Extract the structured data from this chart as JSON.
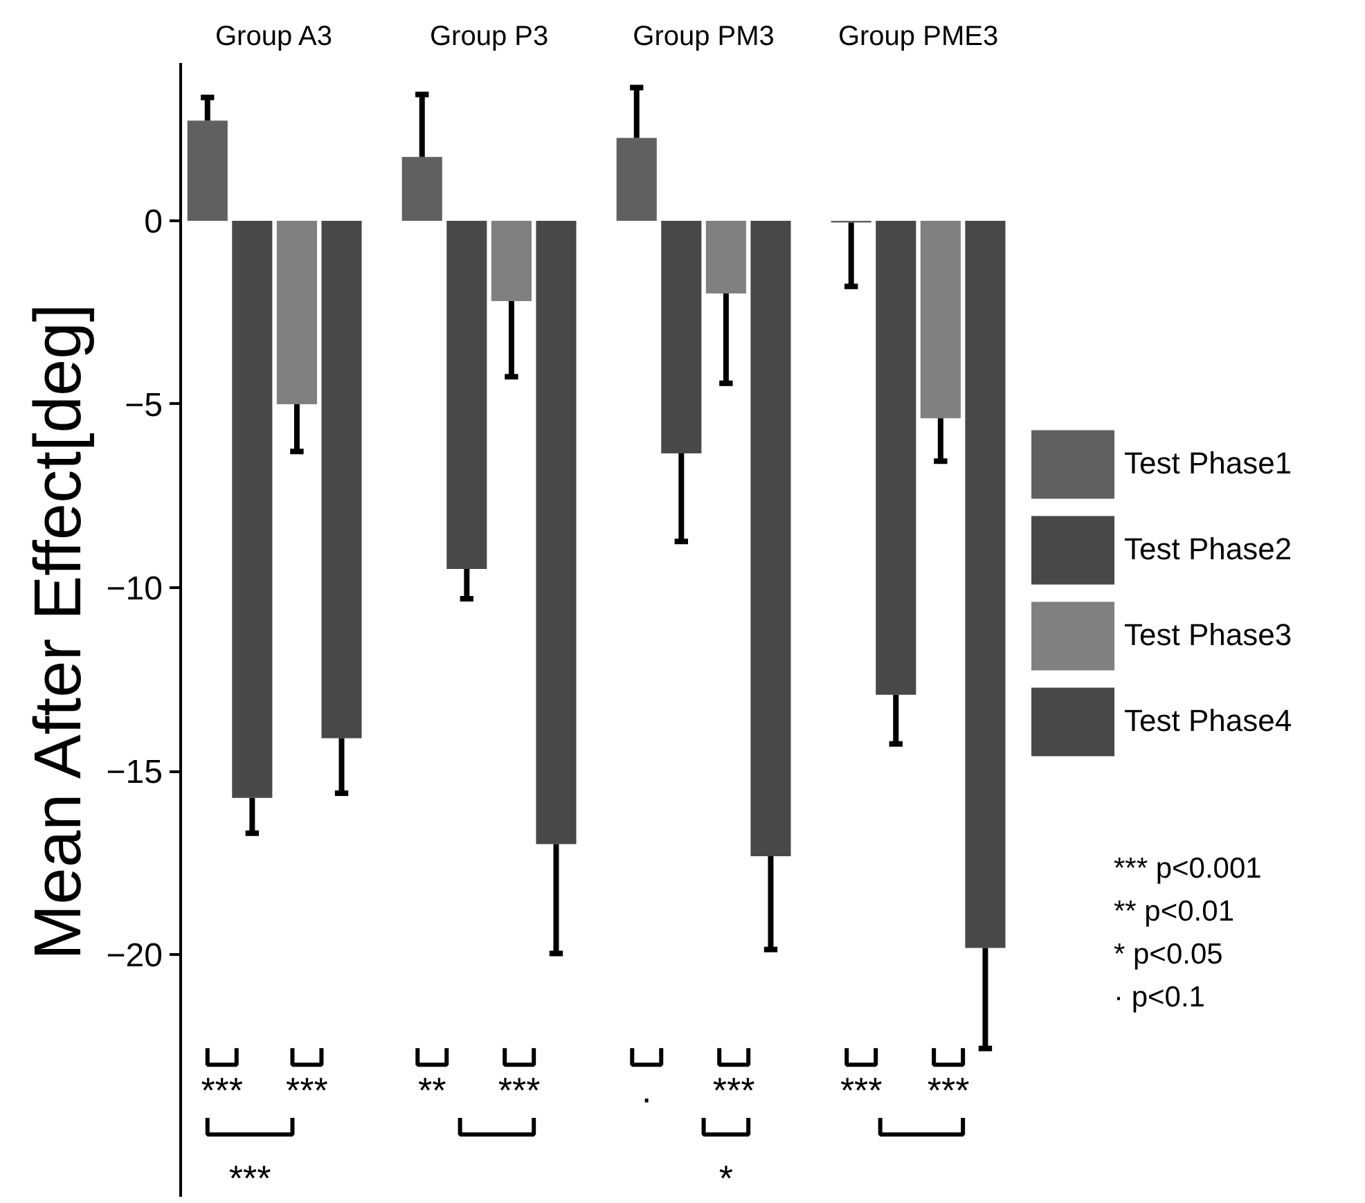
{
  "chart_data": {
    "type": "bar",
    "ylabel": "Mean After Effect[deg]",
    "categories": [
      "Group A3",
      "Group P3",
      "Group PM3",
      "Group PME3"
    ],
    "series": [
      {
        "name": "Test Phase1",
        "color": "#606060",
        "values": [
          2.73,
          1.74,
          2.26,
          -0.05
        ],
        "errors": [
          [
            2.73,
            3.36
          ],
          [
            1.74,
            3.44
          ],
          [
            2.26,
            3.63
          ],
          [
            -1.79,
            -0.05
          ]
        ]
      },
      {
        "name": "Test Phase2",
        "color": "#484848",
        "values": [
          -15.73,
          -9.49,
          -6.34,
          -12.92
        ],
        "errors": [
          [
            -16.69,
            -15.73
          ],
          [
            -10.3,
            -9.49
          ],
          [
            -8.74,
            -6.34
          ],
          [
            -14.26,
            -12.92
          ]
        ]
      },
      {
        "name": "Test Phase3",
        "color": "#808080",
        "values": [
          -5.0,
          -2.19,
          -1.98,
          -5.38
        ],
        "errors": [
          [
            -6.29,
            -5.0
          ],
          [
            -4.25,
            -2.19
          ],
          [
            -4.43,
            -1.98
          ],
          [
            -6.55,
            -5.38
          ]
        ]
      },
      {
        "name": "Test Phase4",
        "color": "#484848",
        "values": [
          -14.1,
          -16.99,
          -17.32,
          -19.82
        ],
        "errors": [
          [
            -15.6,
            -14.1
          ],
          [
            -19.97,
            -16.99
          ],
          [
            -19.86,
            -17.32
          ],
          [
            -22.56,
            -19.82
          ]
        ]
      }
    ],
    "ylim": [
      -26.6,
      4.3
    ],
    "yticks": [
      0,
      -5,
      -10,
      -15,
      -20
    ],
    "grid": false,
    "legend": "right",
    "annotations": [
      "***",
      "***",
      "***",
      "**",
      "***",
      "·",
      "***",
      "*",
      "***",
      "***",
      "*** p<0.001",
      "** p<0.01",
      "* p<0.05",
      "· p<0.1"
    ]
  }
}
